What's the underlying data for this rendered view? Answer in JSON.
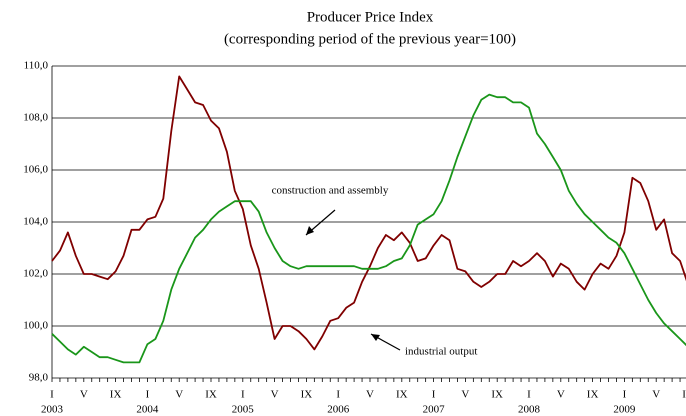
{
  "chart_data": {
    "type": "line",
    "title": "Producer Price Index",
    "subtitle": "(corresponding period of the previous year=100)",
    "categories": [
      "I",
      null,
      null,
      null,
      "V",
      null,
      null,
      null,
      "IX",
      null,
      null,
      null,
      "I",
      null,
      null,
      null,
      "V",
      null,
      null,
      null,
      "IX",
      null,
      null,
      null,
      "I",
      null,
      null,
      null,
      "V",
      null,
      null,
      null,
      "IX",
      null,
      null,
      null,
      "I",
      null,
      null,
      null,
      "V",
      null,
      null,
      null,
      "IX",
      null,
      null,
      null,
      "I",
      null,
      null,
      null,
      "V",
      null,
      null,
      null,
      "IX",
      null,
      null,
      null,
      "I",
      null,
      null,
      null,
      "V",
      null,
      null,
      null,
      "IX",
      null,
      null,
      null,
      "I",
      null,
      null,
      null,
      "V",
      null,
      null,
      null,
      "IX"
    ],
    "years": [
      "2003",
      "2004",
      "2005",
      "2006",
      "2007",
      "2008",
      "2009"
    ],
    "series": [
      {
        "name": "industrial output",
        "color": "#800000",
        "values": [
          102.5,
          102.9,
          103.6,
          102.7,
          102.0,
          102.0,
          101.9,
          101.8,
          102.1,
          102.7,
          103.7,
          103.7,
          104.1,
          104.2,
          104.9,
          107.5,
          109.6,
          109.1,
          108.6,
          108.5,
          107.9,
          107.6,
          106.7,
          105.2,
          104.5,
          103.1,
          102.2,
          100.9,
          99.5,
          100.0,
          100.0,
          99.8,
          99.5,
          99.1,
          99.6,
          100.2,
          100.3,
          100.7,
          100.9,
          101.7,
          102.3,
          103.0,
          103.5,
          103.3,
          103.6,
          103.2,
          102.5,
          102.6,
          103.1,
          103.5,
          103.3,
          102.2,
          102.1,
          101.7,
          101.5,
          101.7,
          102.0,
          102.0,
          102.5,
          102.3,
          102.5,
          102.8,
          102.5,
          101.9,
          102.4,
          102.2,
          101.7,
          101.4,
          102.0,
          102.4,
          102.2,
          102.7,
          103.6,
          105.7,
          105.5,
          104.8,
          103.7,
          104.1,
          102.8,
          102.5,
          101.6
        ]
      },
      {
        "name": "construction and assembly",
        "color": "#1a961a",
        "values": [
          99.7,
          99.4,
          99.1,
          98.9,
          99.2,
          99.0,
          98.8,
          98.8,
          98.7,
          98.6,
          98.6,
          98.6,
          99.3,
          99.5,
          100.2,
          101.4,
          102.2,
          102.8,
          103.4,
          103.7,
          104.1,
          104.4,
          104.6,
          104.8,
          104.8,
          104.8,
          104.4,
          103.6,
          103.0,
          102.5,
          102.3,
          102.2,
          102.3,
          102.3,
          102.3,
          102.3,
          102.3,
          102.3,
          102.3,
          102.2,
          102.2,
          102.2,
          102.3,
          102.5,
          102.6,
          103.1,
          103.9,
          104.1,
          104.3,
          104.8,
          105.6,
          106.5,
          107.3,
          108.1,
          108.7,
          108.9,
          108.8,
          108.8,
          108.6,
          108.6,
          108.4,
          107.4,
          107.0,
          106.5,
          106.0,
          105.2,
          104.7,
          104.3,
          104.0,
          103.7,
          103.4,
          103.2,
          102.8,
          102.2,
          101.6,
          101.0,
          100.5,
          100.1,
          99.8,
          99.5,
          99.2
        ]
      }
    ],
    "ylim": [
      98,
      110
    ],
    "yticks": [
      {
        "value": 98,
        "label": "98,0"
      },
      {
        "value": 100,
        "label": "100,0"
      },
      {
        "value": 102,
        "label": "102,0"
      },
      {
        "value": 104,
        "label": "104,0"
      },
      {
        "value": 106,
        "label": "106,0"
      },
      {
        "value": 108,
        "label": "108,0"
      },
      {
        "value": 110,
        "label": "110,0"
      }
    ],
    "grid": true
  }
}
